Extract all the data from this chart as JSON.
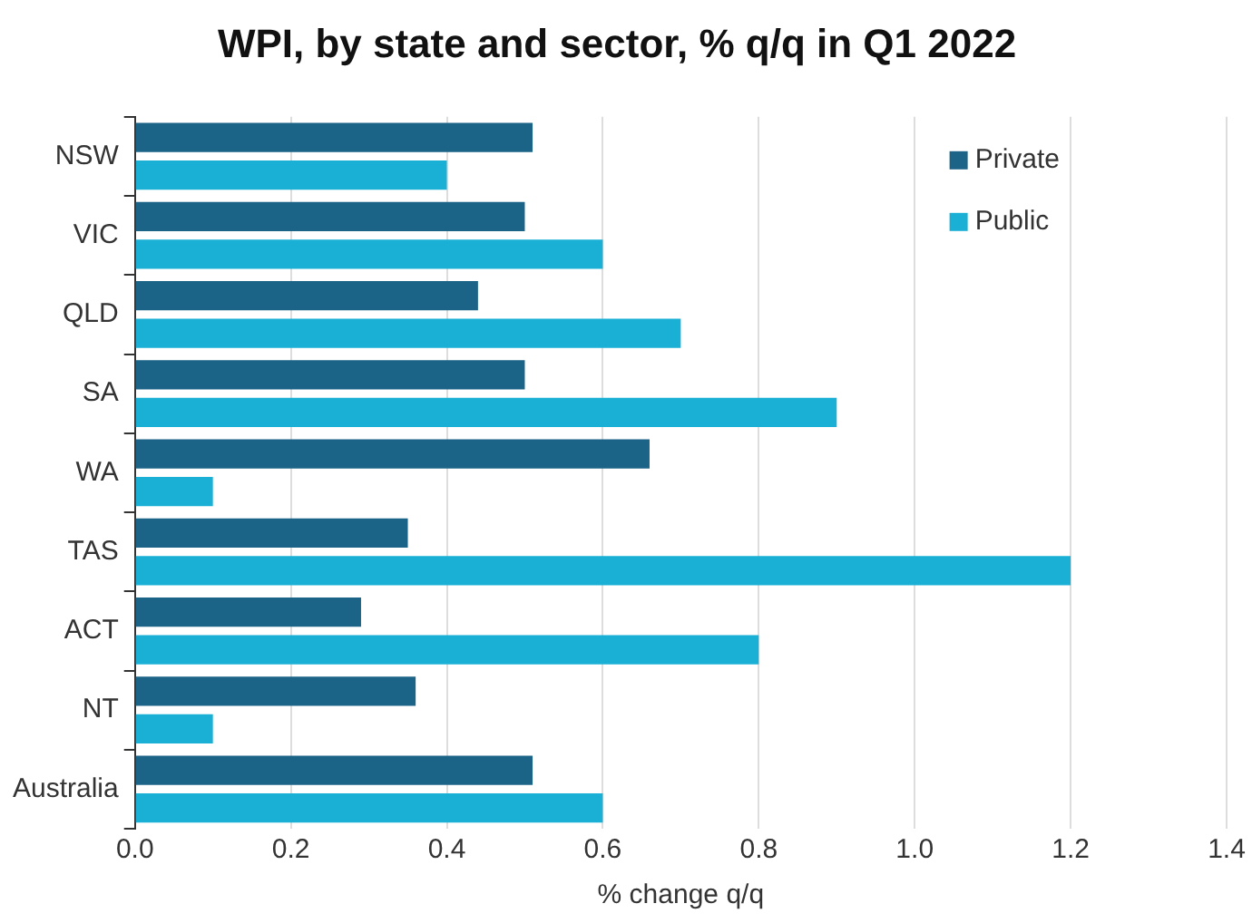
{
  "chart_data": {
    "type": "bar",
    "orientation": "horizontal",
    "title": "WPI, by state and sector, % q/q in Q1 2022",
    "xlabel": "% change q/q",
    "categories": [
      "NSW",
      "VIC",
      "QLD",
      "SA",
      "WA",
      "TAS",
      "ACT",
      "NT",
      "Australia"
    ],
    "series": [
      {
        "name": "Private",
        "color": "#1c6487",
        "values": [
          0.51,
          0.5,
          0.44,
          0.5,
          0.66,
          0.35,
          0.29,
          0.36,
          0.51
        ]
      },
      {
        "name": "Public",
        "color": "#1ab0d5",
        "values": [
          0.4,
          0.6,
          0.7,
          0.9,
          0.1,
          1.2,
          0.8,
          0.1,
          0.6
        ]
      }
    ],
    "xlim": [
      0,
      1.4
    ],
    "xticks": [
      {
        "value": 0,
        "label": "0.0"
      },
      0.2,
      0.4,
      0.6,
      0.8,
      {
        "value": 1,
        "label": "1.0"
      },
      1.2,
      1.4
    ],
    "grid": "x",
    "legend": "top right"
  }
}
